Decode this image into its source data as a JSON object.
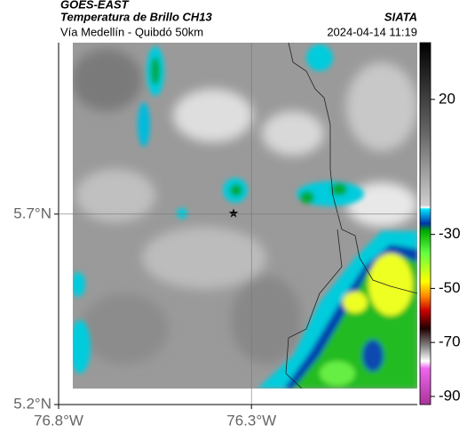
{
  "header": {
    "satellite": "GOES-EAST",
    "product": "Temperatura de Brillo CH13",
    "source": "SIATA",
    "route": "Vía Medellín - Quibdó 50km",
    "datetime": "2024-04-14 11:19"
  },
  "map": {
    "xlim": [
      -76.8,
      -75.87
    ],
    "ylim": [
      5.2,
      6.15
    ],
    "xticks": [
      {
        "value": -76.8,
        "label": "76.8°W"
      },
      {
        "value": -76.3,
        "label": "76.3°W"
      }
    ],
    "yticks": [
      {
        "value": 5.2,
        "label": "5.2°N"
      },
      {
        "value": 5.7,
        "label": "5.7°N"
      }
    ],
    "grid": true
  },
  "colorbar": {
    "clim": [
      -93,
      41
    ],
    "ticks": [
      20,
      -30,
      -50,
      -70,
      -90
    ]
  }
}
